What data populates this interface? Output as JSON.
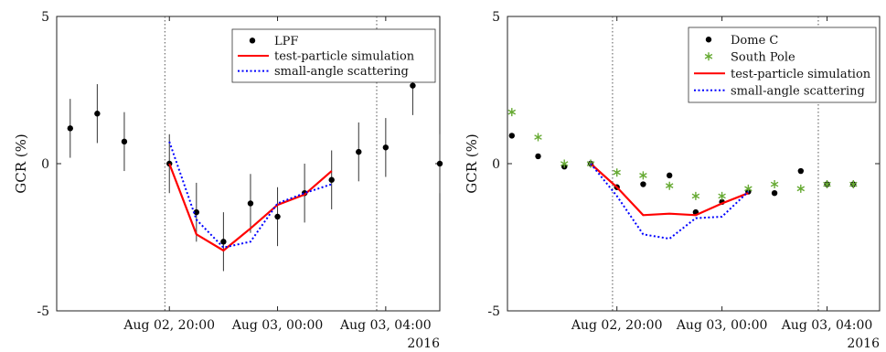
{
  "chart_data": [
    {
      "type": "scatter",
      "ylabel": "GCR (%)",
      "ylim": [
        -5,
        5
      ],
      "yticks": [
        "5",
        "0",
        "-5"
      ],
      "ytick_values": [
        5,
        0,
        -5
      ],
      "xlim": [
        "2016-08-02 15:50",
        "2016-08-03 06:00"
      ],
      "xticks": [
        "Aug 02, 20:00",
        "Aug 03, 00:00",
        "Aug 03, 04:00"
      ],
      "xtick_values": [
        "2016-08-02 20:00",
        "2016-08-03 00:00",
        "2016-08-03 04:00"
      ],
      "year_label": "2016",
      "vlines": [
        "2016-08-02 19:50",
        "2016-08-03 03:40"
      ],
      "legend_position": "top-right",
      "series": [
        {
          "name": "LPF",
          "kind": "errorbar",
          "color": "#000000",
          "x": [
            "2016-08-02 16:20",
            "2016-08-02 17:20",
            "2016-08-02 18:20",
            "2016-08-02 20:00",
            "2016-08-02 21:00",
            "2016-08-02 22:00",
            "2016-08-02 23:00",
            "2016-08-03 00:00",
            "2016-08-03 01:00",
            "2016-08-03 02:00",
            "2016-08-03 03:00",
            "2016-08-03 04:00",
            "2016-08-03 05:00",
            "2016-08-03 06:00"
          ],
          "y": [
            1.2,
            1.7,
            0.75,
            0.0,
            -1.65,
            -2.65,
            -1.35,
            -1.8,
            -1.0,
            -0.55,
            0.4,
            0.55,
            2.65,
            0.0
          ],
          "yerr": [
            1.0,
            1.0,
            1.0,
            1.0,
            1.0,
            1.0,
            1.0,
            1.0,
            1.0,
            1.0,
            1.0,
            1.0,
            1.0,
            1.0
          ]
        },
        {
          "name": "test-particle simulation",
          "kind": "line",
          "color": "#ff0000",
          "x": [
            "2016-08-02 20:00",
            "2016-08-02 21:00",
            "2016-08-02 22:00",
            "2016-08-02 23:00",
            "2016-08-03 00:00",
            "2016-08-03 01:00",
            "2016-08-03 02:00"
          ],
          "y": [
            0.0,
            -2.4,
            -2.95,
            -2.2,
            -1.4,
            -1.05,
            -0.25
          ]
        },
        {
          "name": "small-angle scattering",
          "kind": "dotted",
          "color": "#0000ff",
          "x": [
            "2016-08-02 20:00",
            "2016-08-02 21:00",
            "2016-08-02 22:00",
            "2016-08-02 23:00",
            "2016-08-03 00:00",
            "2016-08-03 01:00",
            "2016-08-03 02:00"
          ],
          "y": [
            0.75,
            -1.9,
            -2.85,
            -2.65,
            -1.35,
            -1.0,
            -0.7
          ]
        }
      ]
    },
    {
      "type": "scatter",
      "ylabel": "GCR (%)",
      "ylim": [
        -5,
        5
      ],
      "yticks": [
        "5",
        "0",
        "-5"
      ],
      "ytick_values": [
        5,
        0,
        -5
      ],
      "xlim": [
        "2016-08-02 15:50",
        "2016-08-03 06:00"
      ],
      "xticks": [
        "Aug 02, 20:00",
        "Aug 03, 00:00",
        "Aug 03, 04:00"
      ],
      "xtick_values": [
        "2016-08-02 20:00",
        "2016-08-03 00:00",
        "2016-08-03 04:00"
      ],
      "year_label": "2016",
      "vlines": [
        "2016-08-02 19:50",
        "2016-08-03 03:40"
      ],
      "legend_position": "top-right",
      "series": [
        {
          "name": "Dome C",
          "kind": "dot",
          "color": "#000000",
          "x": [
            "2016-08-02 16:00",
            "2016-08-02 17:00",
            "2016-08-02 18:00",
            "2016-08-02 19:00",
            "2016-08-02 20:00",
            "2016-08-02 21:00",
            "2016-08-02 22:00",
            "2016-08-02 23:00",
            "2016-08-03 00:00",
            "2016-08-03 01:00",
            "2016-08-03 02:00",
            "2016-08-03 03:00",
            "2016-08-03 04:00",
            "2016-08-03 05:00"
          ],
          "y": [
            0.95,
            0.25,
            -0.1,
            0.0,
            -0.8,
            -0.7,
            -0.4,
            -1.65,
            -1.3,
            -0.95,
            -1.0,
            -0.25,
            -0.7,
            -0.7
          ]
        },
        {
          "name": "South Pole",
          "kind": "star",
          "color": "#66aa33",
          "x": [
            "2016-08-02 16:00",
            "2016-08-02 17:00",
            "2016-08-02 18:00",
            "2016-08-02 19:00",
            "2016-08-02 20:00",
            "2016-08-02 21:00",
            "2016-08-02 22:00",
            "2016-08-02 23:00",
            "2016-08-03 00:00",
            "2016-08-03 01:00",
            "2016-08-03 02:00",
            "2016-08-03 03:00",
            "2016-08-03 04:00",
            "2016-08-03 05:00"
          ],
          "y": [
            1.75,
            0.9,
            0.0,
            0.0,
            -0.3,
            -0.4,
            -0.75,
            -1.1,
            -1.1,
            -0.85,
            -0.7,
            -0.85,
            -0.7,
            -0.7
          ]
        },
        {
          "name": "test-particle simulation",
          "kind": "line",
          "color": "#ff0000",
          "x": [
            "2016-08-02 19:00",
            "2016-08-02 20:00",
            "2016-08-02 21:00",
            "2016-08-02 22:00",
            "2016-08-02 23:00",
            "2016-08-03 00:00",
            "2016-08-03 01:00"
          ],
          "y": [
            0.0,
            -0.8,
            -1.75,
            -1.7,
            -1.75,
            -1.35,
            -1.0
          ]
        },
        {
          "name": "small-angle scattering",
          "kind": "dotted",
          "color": "#0000ff",
          "x": [
            "2016-08-02 19:00",
            "2016-08-02 20:00",
            "2016-08-02 21:00",
            "2016-08-02 22:00",
            "2016-08-02 23:00",
            "2016-08-03 00:00",
            "2016-08-03 01:00"
          ],
          "y": [
            0.0,
            -1.1,
            -2.4,
            -2.55,
            -1.85,
            -1.8,
            -0.95
          ]
        }
      ]
    }
  ]
}
